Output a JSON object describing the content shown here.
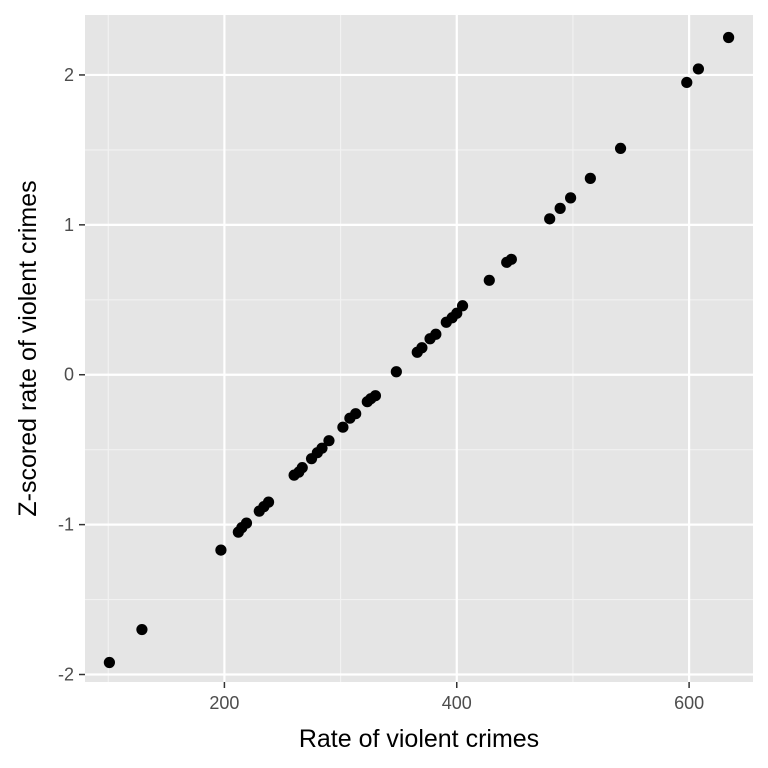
{
  "chart_data": {
    "type": "scatter",
    "xlabel": "Rate of violent crimes",
    "ylabel": "Z-scored rate of violent crimes",
    "xlim": [
      80,
      655
    ],
    "ylim": [
      -2.05,
      2.4
    ],
    "x_ticks": [
      200,
      400,
      600
    ],
    "y_ticks": [
      -2,
      -1,
      0,
      1,
      2
    ],
    "x_tick_labels": [
      "200",
      "400",
      "600"
    ],
    "y_tick_labels": [
      "-2",
      "-1",
      "0",
      "1",
      "2"
    ],
    "grid": true,
    "colors": {
      "panel_background": "#e5e5e5",
      "grid_major": "#ffffff",
      "grid_minor": "#f2f2f2",
      "point": "#000000",
      "tick_mark": "#333333"
    },
    "points": [
      {
        "x": 101,
        "y": -1.92
      },
      {
        "x": 129,
        "y": -1.7
      },
      {
        "x": 197,
        "y": -1.17
      },
      {
        "x": 212,
        "y": -1.05
      },
      {
        "x": 215,
        "y": -1.02
      },
      {
        "x": 219,
        "y": -0.99
      },
      {
        "x": 230,
        "y": -0.91
      },
      {
        "x": 234,
        "y": -0.88
      },
      {
        "x": 238,
        "y": -0.85
      },
      {
        "x": 260,
        "y": -0.67
      },
      {
        "x": 264,
        "y": -0.65
      },
      {
        "x": 267,
        "y": -0.62
      },
      {
        "x": 275,
        "y": -0.56
      },
      {
        "x": 280,
        "y": -0.52
      },
      {
        "x": 284,
        "y": -0.49
      },
      {
        "x": 290,
        "y": -0.44
      },
      {
        "x": 302,
        "y": -0.35
      },
      {
        "x": 308,
        "y": -0.29
      },
      {
        "x": 313,
        "y": -0.26
      },
      {
        "x": 323,
        "y": -0.18
      },
      {
        "x": 326,
        "y": -0.16
      },
      {
        "x": 330,
        "y": -0.14
      },
      {
        "x": 348,
        "y": 0.02
      },
      {
        "x": 366,
        "y": 0.15
      },
      {
        "x": 370,
        "y": 0.18
      },
      {
        "x": 377,
        "y": 0.24
      },
      {
        "x": 382,
        "y": 0.27
      },
      {
        "x": 391,
        "y": 0.35
      },
      {
        "x": 396,
        "y": 0.38
      },
      {
        "x": 400,
        "y": 0.41
      },
      {
        "x": 405,
        "y": 0.46
      },
      {
        "x": 428,
        "y": 0.63
      },
      {
        "x": 443,
        "y": 0.75
      },
      {
        "x": 447,
        "y": 0.77
      },
      {
        "x": 480,
        "y": 1.04
      },
      {
        "x": 489,
        "y": 1.11
      },
      {
        "x": 498,
        "y": 1.18
      },
      {
        "x": 515,
        "y": 1.31
      },
      {
        "x": 541,
        "y": 1.51
      },
      {
        "x": 598,
        "y": 1.95
      },
      {
        "x": 608,
        "y": 2.04
      },
      {
        "x": 634,
        "y": 2.25
      }
    ]
  }
}
